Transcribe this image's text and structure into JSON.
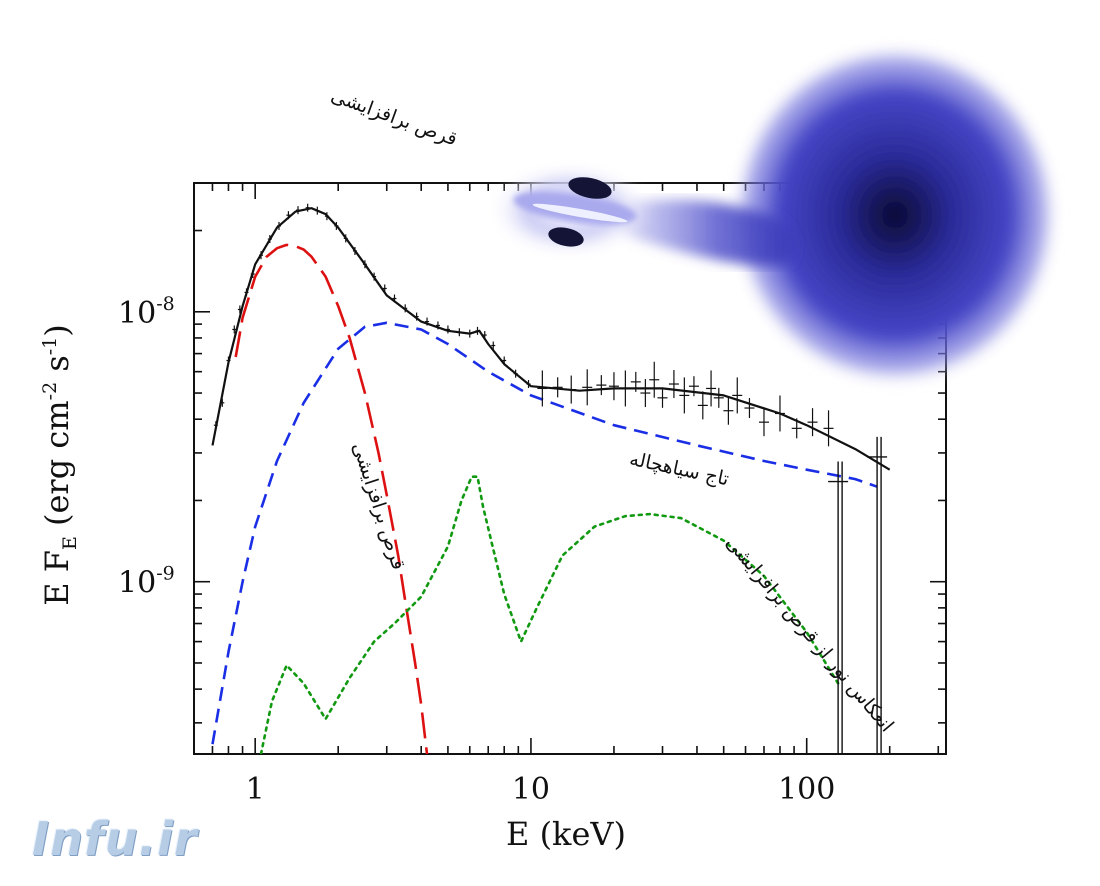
{
  "chart_data": {
    "type": "line",
    "xscale": "log",
    "yscale": "log",
    "xlim": [
      0.6,
      320
    ],
    "ylim": [
      2.3e-10,
      3e-08
    ],
    "xlabel": "E (keV)",
    "ylabel_main": "E F",
    "ylabel_sub": "E",
    "ylabel_units": " (erg cm",
    "ylabel_exp1": "-2",
    "ylabel_mid": " s",
    "ylabel_exp2": "-1",
    "ylabel_close": ")",
    "x_ticks": [
      {
        "value": 1,
        "label": "1"
      },
      {
        "value": 10,
        "label": "10"
      },
      {
        "value": 100,
        "label": "100"
      }
    ],
    "y_ticks": [
      {
        "value": 1e-08,
        "base": "10",
        "exp": "-8"
      },
      {
        "value": 1e-09,
        "base": "10",
        "exp": "-9"
      }
    ],
    "series": [
      {
        "key": "total",
        "color": "#111111",
        "dash": "none",
        "x": [
          0.7,
          0.8,
          0.9,
          1.0,
          1.2,
          1.4,
          1.6,
          1.8,
          2.0,
          2.5,
          3.0,
          4.0,
          5.0,
          6.0,
          6.5,
          7.0,
          8.0,
          10,
          15,
          20,
          30,
          50,
          80,
          100,
          150,
          200
        ],
        "y": [
          3.2e-09,
          6.5e-09,
          1.05e-08,
          1.5e-08,
          2.05e-08,
          2.35e-08,
          2.42e-08,
          2.3e-08,
          2.05e-08,
          1.5e-08,
          1.15e-08,
          9.2e-09,
          8.5e-09,
          8.3e-09,
          8.5e-09,
          7.6e-09,
          6.4e-09,
          5.3e-09,
          5.1e-09,
          5.2e-09,
          5.2e-09,
          4.9e-09,
          4.2e-09,
          3.8e-09,
          3.1e-09,
          2.6e-09
        ]
      },
      {
        "key": "disk",
        "color": "#dd1111",
        "dash": "26,9",
        "x": [
          0.85,
          0.9,
          1.0,
          1.1,
          1.2,
          1.3,
          1.4,
          1.5,
          1.6,
          1.8,
          2.0,
          2.2,
          2.5,
          2.8,
          3.0,
          3.3,
          3.5,
          3.8,
          4.0,
          4.2
        ],
        "y": [
          6.8e-09,
          9.5e-09,
          1.35e-08,
          1.6e-08,
          1.72e-08,
          1.77e-08,
          1.75e-08,
          1.7e-08,
          1.6e-08,
          1.35e-08,
          1.05e-08,
          8e-09,
          5e-09,
          3e-09,
          2.1e-09,
          1.25e-09,
          8.5e-10,
          5e-10,
          3.5e-10,
          2.3e-10
        ]
      },
      {
        "key": "corona",
        "color": "#1a2ee6",
        "dash": "14,8",
        "x": [
          0.7,
          0.8,
          0.9,
          1.0,
          1.2,
          1.5,
          2.0,
          2.5,
          3.0,
          4.0,
          5.0,
          7.0,
          10,
          20,
          40,
          70,
          100,
          150,
          180
        ],
        "y": [
          2.5e-10,
          5.5e-10,
          1e-09,
          1.6e-09,
          2.8e-09,
          4.6e-09,
          7.3e-09,
          8.8e-09,
          9.1e-09,
          8.6e-09,
          7.6e-09,
          6e-09,
          4.9e-09,
          3.8e-09,
          3.2e-09,
          2.8e-09,
          2.6e-09,
          2.4e-09,
          2.25e-09
        ]
      },
      {
        "key": "reflection",
        "color": "#119911",
        "dash": "3,5",
        "x": [
          1.05,
          1.15,
          1.3,
          1.5,
          1.8,
          2.2,
          2.7,
          3.2,
          4.0,
          5.0,
          5.6,
          6.1,
          6.4,
          6.7,
          7.2,
          8.0,
          9.2,
          10.5,
          13,
          17,
          22,
          27,
          35,
          50,
          70,
          100,
          130
        ],
        "y": [
          2.3e-10,
          3.6e-10,
          4.9e-10,
          4.2e-10,
          3.1e-10,
          4.4e-10,
          6e-10,
          7e-10,
          8.8e-10,
          1.35e-09,
          2e-09,
          2.45e-09,
          2.45e-09,
          1.9e-09,
          1.4e-09,
          9e-10,
          6e-10,
          8e-10,
          1.25e-09,
          1.6e-09,
          1.75e-09,
          1.78e-09,
          1.72e-09,
          1.42e-09,
          1.05e-09,
          6.5e-10,
          4.2e-10
        ]
      }
    ],
    "data_points": {
      "x": [
        0.72,
        0.76,
        0.8,
        0.84,
        0.88,
        0.93,
        0.98,
        1.05,
        1.13,
        1.22,
        1.32,
        1.43,
        1.55,
        1.68,
        1.82,
        1.97,
        2.13,
        2.3,
        2.5,
        2.7,
        2.95,
        3.2,
        3.5,
        3.85,
        4.2,
        4.6,
        5.0,
        5.5,
        6.0,
        6.4,
        6.8,
        7.3,
        8.0,
        8.8,
        9.8,
        11,
        12.5,
        14,
        16,
        18,
        20,
        22,
        24,
        26,
        28,
        30,
        33,
        36,
        39,
        42,
        45,
        48,
        52,
        56,
        62,
        70,
        80,
        92,
        105,
        120
      ],
      "y": [
        3.8e-09,
        4.6e-09,
        6.6e-09,
        8.6e-09,
        1.02e-08,
        1.18e-08,
        1.38e-08,
        1.62e-08,
        1.86e-08,
        2.08e-08,
        2.28e-08,
        2.38e-08,
        2.43e-08,
        2.37e-08,
        2.26e-08,
        2.08e-08,
        1.87e-08,
        1.68e-08,
        1.5e-08,
        1.35e-08,
        1.22e-08,
        1.12e-08,
        1.03e-08,
        9.6e-09,
        9.2e-09,
        8.9e-09,
        8.6e-09,
        8.4e-09,
        8.3e-09,
        8.5e-09,
        8.2e-09,
        7.5e-09,
        6.6e-09,
        5.9e-09,
        5.4e-09,
        5.2e-09,
        5.25e-09,
        5.15e-09,
        5.25e-09,
        5.35e-09,
        5.3e-09,
        5.2e-09,
        5.5e-09,
        5e-09,
        5.6e-09,
        4.8e-09,
        5.4e-09,
        4.9e-09,
        5.3e-09,
        4.5e-09,
        5.2e-09,
        4.8e-09,
        4.3e-09,
        4.9e-09,
        4.4e-09,
        3.9e-09,
        4.2e-09,
        3.7e-09,
        3.9e-09,
        3.7e-09
      ]
    },
    "upper_limits": [
      {
        "x": 130,
        "y": 2.35e-09
      },
      {
        "x": 180,
        "y": 2.9e-09
      }
    ],
    "annotations": [
      {
        "key": "disk_top",
        "text": "قرص برافزایشی"
      },
      {
        "key": "disk_curve",
        "text": "قرص برافزایشی"
      },
      {
        "key": "corona",
        "text": "تاج سیاهچاله"
      },
      {
        "key": "reflection",
        "text": "انعکاس نور از قرص برافزایشی"
      }
    ]
  },
  "watermark": "Infu.ir"
}
